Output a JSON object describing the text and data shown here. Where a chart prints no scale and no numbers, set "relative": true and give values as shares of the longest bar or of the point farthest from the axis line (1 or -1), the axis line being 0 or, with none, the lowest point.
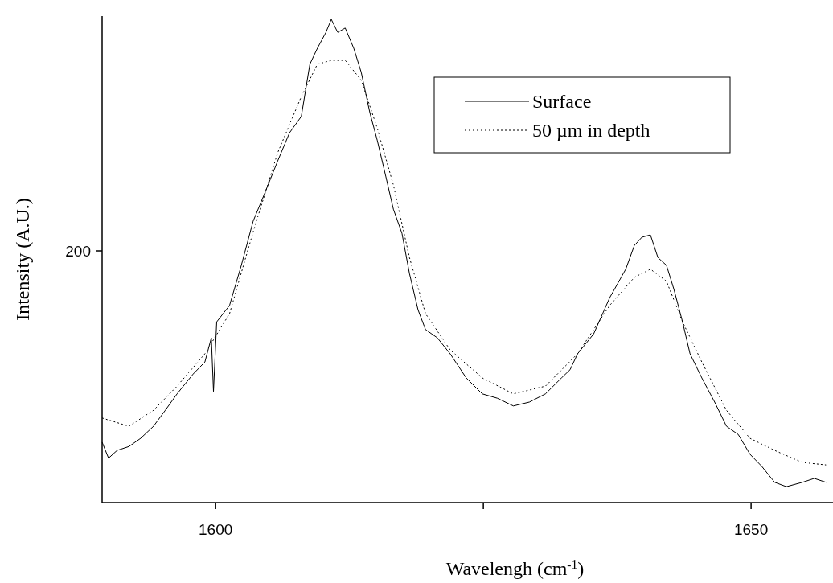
{
  "chart_data": {
    "type": "line",
    "relative": true,
    "xlabel": "Wavelengh (cm$^{-1}$)",
    "ylabel": "Intensity (A.U.)",
    "xlim": [
      1589.4,
      1657.5
    ],
    "xticks": [
      1600,
      {
        "value": 1625,
        "label": null
      },
      1650
    ],
    "annotations": [
      "200"
    ],
    "legend": "top right",
    "grid": false,
    "series": [
      {
        "name": "Surface",
        "color": "#000000",
        "line_style": "solid",
        "x": [
          1589.4,
          1590.0,
          1590.8,
          1591.9,
          1593.0,
          1594.2,
          1595.3,
          1596.4,
          1597.9,
          1599.0,
          1599.6,
          1599.8,
          1600.1,
          1601.3,
          1602.4,
          1603.5,
          1604.6,
          1605.8,
          1606.9,
          1608.0,
          1608.8,
          1609.5,
          1610.3,
          1610.8,
          1611.4,
          1612.1,
          1612.9,
          1613.6,
          1614.4,
          1615.1,
          1615.9,
          1616.6,
          1617.4,
          1618.1,
          1618.9,
          1619.6,
          1620.7,
          1621.9,
          1623.4,
          1624.9,
          1626.3,
          1627.8,
          1629.3,
          1630.8,
          1632.3,
          1633.1,
          1633.8,
          1635.3,
          1636.8,
          1638.3,
          1639.1,
          1639.8,
          1640.6,
          1641.3,
          1642.1,
          1642.8,
          1643.6,
          1644.3,
          1645.4,
          1646.6,
          1647.7,
          1648.8,
          1649.9,
          1651.0,
          1652.2,
          1653.3,
          1654.8,
          1655.9,
          1657.0
        ],
        "values": [
          0.125,
          0.092,
          0.108,
          0.116,
          0.133,
          0.158,
          0.191,
          0.225,
          0.266,
          0.291,
          0.341,
          0.23,
          0.374,
          0.408,
          0.491,
          0.582,
          0.641,
          0.707,
          0.765,
          0.799,
          0.907,
          0.94,
          0.973,
          1.0,
          0.973,
          0.982,
          0.94,
          0.89,
          0.807,
          0.749,
          0.674,
          0.607,
          0.557,
          0.474,
          0.399,
          0.358,
          0.341,
          0.308,
          0.258,
          0.225,
          0.216,
          0.2,
          0.208,
          0.225,
          0.258,
          0.275,
          0.308,
          0.349,
          0.424,
          0.483,
          0.532,
          0.549,
          0.554,
          0.507,
          0.491,
          0.441,
          0.374,
          0.308,
          0.258,
          0.208,
          0.158,
          0.141,
          0.1,
          0.075,
          0.042,
          0.033,
          0.042,
          0.05,
          0.042
        ]
      },
      {
        "name": "50 µm in depth",
        "color": "#000000",
        "line_style": "dotted",
        "x": [
          1589.4,
          1591.9,
          1594.2,
          1596.4,
          1599.0,
          1601.3,
          1603.5,
          1605.8,
          1608.0,
          1609.5,
          1610.8,
          1612.1,
          1613.6,
          1615.1,
          1616.6,
          1618.1,
          1619.6,
          1621.9,
          1624.9,
          1627.8,
          1630.8,
          1633.8,
          1636.8,
          1639.1,
          1640.6,
          1642.1,
          1643.6,
          1645.4,
          1647.7,
          1649.9,
          1652.2,
          1654.8,
          1657.0
        ],
        "values": [
          0.175,
          0.158,
          0.191,
          0.241,
          0.308,
          0.391,
          0.56,
          0.724,
          0.84,
          0.907,
          0.915,
          0.915,
          0.874,
          0.774,
          0.657,
          0.507,
          0.391,
          0.316,
          0.258,
          0.225,
          0.241,
          0.308,
          0.408,
          0.466,
          0.483,
          0.458,
          0.374,
          0.291,
          0.191,
          0.133,
          0.108,
          0.083,
          0.078
        ]
      }
    ]
  }
}
